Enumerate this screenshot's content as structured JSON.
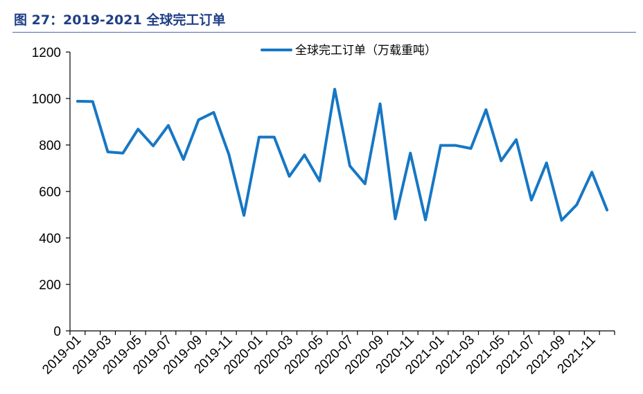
{
  "figure": {
    "title": "图 27：2019-2021 全球完工订单"
  },
  "chart_data": {
    "type": "line",
    "title": "",
    "xlabel": "",
    "ylabel": "",
    "ylim": [
      0,
      1200
    ],
    "yticks": [
      0,
      200,
      400,
      600,
      800,
      1000,
      1200
    ],
    "grid": false,
    "legend_position": "top-center",
    "x": [
      "2019-01",
      "2019-02",
      "2019-03",
      "2019-04",
      "2019-05",
      "2019-06",
      "2019-07",
      "2019-08",
      "2019-09",
      "2019-10",
      "2019-11",
      "2019-12",
      "2020-01",
      "2020-02",
      "2020-03",
      "2020-04",
      "2020-05",
      "2020-06",
      "2020-07",
      "2020-08",
      "2020-09",
      "2020-10",
      "2020-11",
      "2020-12",
      "2021-01",
      "2021-02",
      "2021-03",
      "2021-04",
      "2021-05",
      "2021-06",
      "2021-07",
      "2021-08",
      "2021-09",
      "2021-10",
      "2021-11",
      "2021-12"
    ],
    "xtick_labels": [
      "2019-01",
      "2019-03",
      "2019-05",
      "2019-07",
      "2019-09",
      "2019-11",
      "2020-01",
      "2020-03",
      "2020-05",
      "2020-07",
      "2020-09",
      "2020-11",
      "2021-01",
      "2021-03",
      "2021-05",
      "2021-07",
      "2021-09",
      "2021-11"
    ],
    "series": [
      {
        "name": "全球完工订单（万载重吨）",
        "color": "#1677c5",
        "values": [
          988,
          987,
          770,
          765,
          868,
          796,
          884,
          738,
          908,
          940,
          760,
          497,
          834,
          834,
          665,
          757,
          645,
          1040,
          710,
          633,
          977,
          482,
          765,
          478,
          798,
          798,
          785,
          952,
          732,
          823,
          563,
          723,
          476,
          543,
          683,
          520
        ]
      }
    ]
  }
}
